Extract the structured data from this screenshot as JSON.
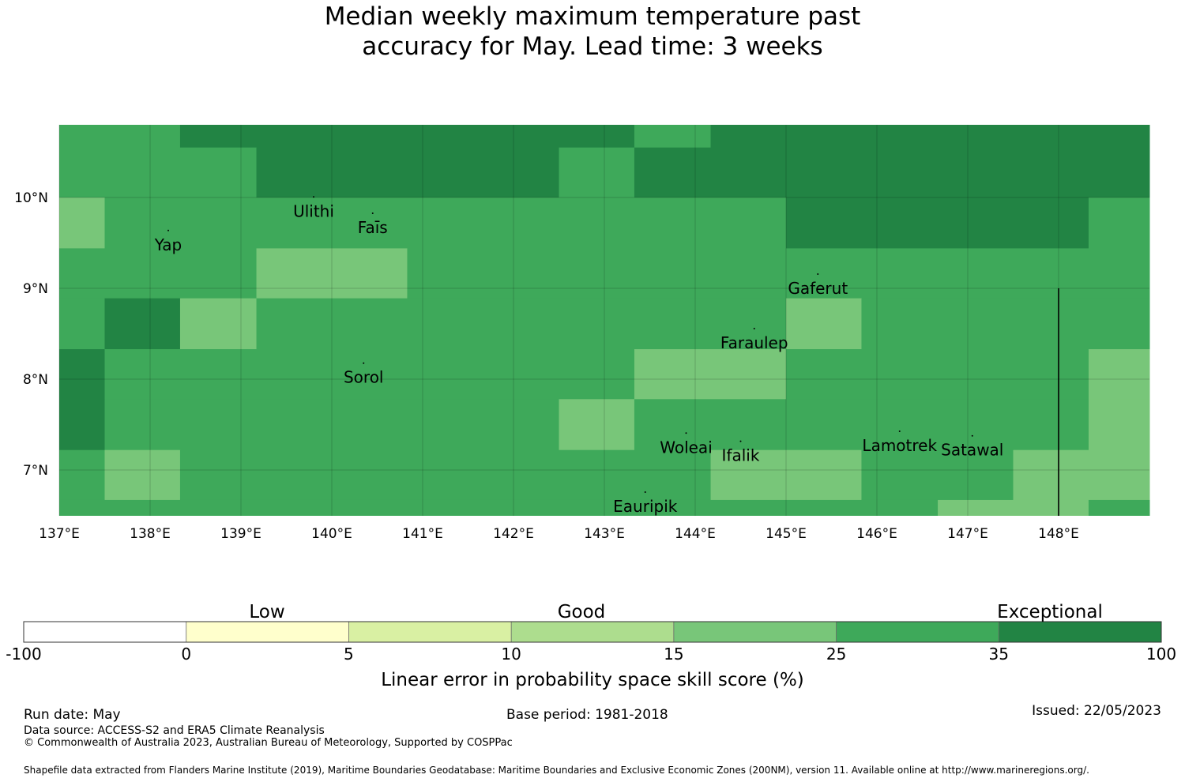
{
  "title": {
    "line1": "Median weekly maximum temperature past",
    "line2": "accuracy for May. Lead time: 3 weeks"
  },
  "map": {
    "lon_range": [
      137,
      149
    ],
    "lat_range": [
      6.5,
      10.8
    ],
    "lon_ticks": [
      {
        "value": 137,
        "label": "137°E"
      },
      {
        "value": 138,
        "label": "138°E"
      },
      {
        "value": 139,
        "label": "139°E"
      },
      {
        "value": 140,
        "label": "140°E"
      },
      {
        "value": 141,
        "label": "141°E"
      },
      {
        "value": 142,
        "label": "142°E"
      },
      {
        "value": 143,
        "label": "143°E"
      },
      {
        "value": 144,
        "label": "144°E"
      },
      {
        "value": 145,
        "label": "145°E"
      },
      {
        "value": 146,
        "label": "146°E"
      },
      {
        "value": 147,
        "label": "147°E"
      },
      {
        "value": 148,
        "label": "148°E"
      }
    ],
    "lat_ticks": [
      {
        "value": 10,
        "label": "10°N"
      },
      {
        "value": 9,
        "label": "9°N"
      },
      {
        "value": 8,
        "label": "8°N"
      },
      {
        "value": 7,
        "label": "7°N"
      }
    ],
    "colors": {
      "d": "#228444",
      "m": "#3ea95a",
      "l": "#78c679"
    },
    "cells": [
      {
        "lon0": 137.0,
        "lon1": 138.33,
        "lat0": 10.55,
        "lat1": 10.8,
        "c": "m"
      },
      {
        "lon0": 138.33,
        "lon1": 143.33,
        "lat0": 10.55,
        "lat1": 10.8,
        "c": "d"
      },
      {
        "lon0": 143.33,
        "lon1": 144.17,
        "lat0": 10.55,
        "lat1": 10.8,
        "c": "m"
      },
      {
        "lon0": 144.17,
        "lon1": 149.0,
        "lat0": 10.55,
        "lat1": 10.8,
        "c": "d"
      },
      {
        "lon0": 137.0,
        "lon1": 139.17,
        "lat0": 10.0,
        "lat1": 10.55,
        "c": "m"
      },
      {
        "lon0": 139.17,
        "lon1": 142.5,
        "lat0": 10.0,
        "lat1": 10.55,
        "c": "d"
      },
      {
        "lon0": 142.5,
        "lon1": 143.33,
        "lat0": 10.0,
        "lat1": 10.55,
        "c": "m"
      },
      {
        "lon0": 143.33,
        "lon1": 149.0,
        "lat0": 10.0,
        "lat1": 10.55,
        "c": "d"
      },
      {
        "lon0": 137.0,
        "lon1": 137.5,
        "lat0": 9.44,
        "lat1": 10.0,
        "c": "l"
      },
      {
        "lon0": 137.5,
        "lon1": 145.0,
        "lat0": 9.44,
        "lat1": 10.0,
        "c": "m"
      },
      {
        "lon0": 145.0,
        "lon1": 148.33,
        "lat0": 9.44,
        "lat1": 10.0,
        "c": "d"
      },
      {
        "lon0": 148.33,
        "lon1": 149.0,
        "lat0": 9.44,
        "lat1": 10.0,
        "c": "m"
      },
      {
        "lon0": 137.0,
        "lon1": 139.17,
        "lat0": 8.89,
        "lat1": 9.44,
        "c": "m"
      },
      {
        "lon0": 139.17,
        "lon1": 140.83,
        "lat0": 8.89,
        "lat1": 9.44,
        "c": "l"
      },
      {
        "lon0": 140.83,
        "lon1": 149.0,
        "lat0": 8.89,
        "lat1": 9.44,
        "c": "m"
      },
      {
        "lon0": 137.0,
        "lon1": 137.5,
        "lat0": 8.33,
        "lat1": 8.89,
        "c": "m"
      },
      {
        "lon0": 137.5,
        "lon1": 138.33,
        "lat0": 8.33,
        "lat1": 8.89,
        "c": "d"
      },
      {
        "lon0": 138.33,
        "lon1": 139.17,
        "lat0": 8.33,
        "lat1": 8.89,
        "c": "l"
      },
      {
        "lon0": 139.17,
        "lon1": 145.0,
        "lat0": 8.33,
        "lat1": 8.89,
        "c": "m"
      },
      {
        "lon0": 145.0,
        "lon1": 145.83,
        "lat0": 8.33,
        "lat1": 8.89,
        "c": "l"
      },
      {
        "lon0": 145.83,
        "lon1": 149.0,
        "lat0": 8.33,
        "lat1": 8.89,
        "c": "m"
      },
      {
        "lon0": 137.0,
        "lon1": 137.5,
        "lat0": 7.78,
        "lat1": 8.33,
        "c": "d"
      },
      {
        "lon0": 137.5,
        "lon1": 143.33,
        "lat0": 7.78,
        "lat1": 8.33,
        "c": "m"
      },
      {
        "lon0": 143.33,
        "lon1": 145.0,
        "lat0": 7.78,
        "lat1": 8.33,
        "c": "l"
      },
      {
        "lon0": 145.0,
        "lon1": 148.33,
        "lat0": 7.78,
        "lat1": 8.33,
        "c": "m"
      },
      {
        "lon0": 148.33,
        "lon1": 149.0,
        "lat0": 7.78,
        "lat1": 8.33,
        "c": "l"
      },
      {
        "lon0": 137.0,
        "lon1": 137.5,
        "lat0": 7.22,
        "lat1": 7.78,
        "c": "d"
      },
      {
        "lon0": 137.5,
        "lon1": 142.5,
        "lat0": 7.22,
        "lat1": 7.78,
        "c": "m"
      },
      {
        "lon0": 142.5,
        "lon1": 143.33,
        "lat0": 7.22,
        "lat1": 7.78,
        "c": "l"
      },
      {
        "lon0": 143.33,
        "lon1": 148.33,
        "lat0": 7.22,
        "lat1": 7.78,
        "c": "m"
      },
      {
        "lon0": 148.33,
        "lon1": 149.0,
        "lat0": 7.22,
        "lat1": 7.78,
        "c": "l"
      },
      {
        "lon0": 137.0,
        "lon1": 137.5,
        "lat0": 6.67,
        "lat1": 7.22,
        "c": "m"
      },
      {
        "lon0": 137.5,
        "lon1": 138.33,
        "lat0": 6.67,
        "lat1": 7.22,
        "c": "l"
      },
      {
        "lon0": 138.33,
        "lon1": 144.17,
        "lat0": 6.67,
        "lat1": 7.22,
        "c": "m"
      },
      {
        "lon0": 144.17,
        "lon1": 145.83,
        "lat0": 6.67,
        "lat1": 7.22,
        "c": "l"
      },
      {
        "lon0": 145.83,
        "lon1": 147.5,
        "lat0": 6.67,
        "lat1": 7.22,
        "c": "m"
      },
      {
        "lon0": 147.5,
        "lon1": 149.0,
        "lat0": 6.67,
        "lat1": 7.22,
        "c": "l"
      },
      {
        "lon0": 137.0,
        "lon1": 146.67,
        "lat0": 6.5,
        "lat1": 6.67,
        "c": "m"
      },
      {
        "lon0": 146.67,
        "lon1": 148.33,
        "lat0": 6.5,
        "lat1": 6.67,
        "c": "l"
      },
      {
        "lon0": 148.33,
        "lon1": 149.0,
        "lat0": 6.5,
        "lat1": 6.67,
        "c": "m"
      }
    ],
    "places": [
      {
        "name": "Ulithi",
        "lon": 139.8,
        "lat": 9.85
      },
      {
        "name": "Faīs",
        "lon": 140.45,
        "lat": 9.67
      },
      {
        "name": "Yap",
        "lon": 138.2,
        "lat": 9.48
      },
      {
        "name": "Gaferut",
        "lon": 145.35,
        "lat": 9.0
      },
      {
        "name": "Faraulep",
        "lon": 144.65,
        "lat": 8.4
      },
      {
        "name": "Sorol",
        "lon": 140.35,
        "lat": 8.02
      },
      {
        "name": "Woleai",
        "lon": 143.9,
        "lat": 7.25
      },
      {
        "name": "Ifalik",
        "lon": 144.5,
        "lat": 7.16
      },
      {
        "name": "Lamotrek",
        "lon": 146.25,
        "lat": 7.27
      },
      {
        "name": "Satawal",
        "lon": 147.05,
        "lat": 7.22
      },
      {
        "name": "Eauripik",
        "lon": 143.45,
        "lat": 6.6
      }
    ],
    "boundary_lon": 148.0,
    "boundary_lat_top": 9.0
  },
  "colorbar": {
    "bins": [
      {
        "from": "-100",
        "to": "0",
        "color": "#ffffff"
      },
      {
        "from": "0",
        "to": "5",
        "color": "#ffffcc"
      },
      {
        "from": "5",
        "to": "10",
        "color": "#d9f0a3"
      },
      {
        "from": "10",
        "to": "15",
        "color": "#addd8e"
      },
      {
        "from": "15",
        "to": "25",
        "color": "#78c679"
      },
      {
        "from": "25",
        "to": "35",
        "color": "#3ea95a"
      },
      {
        "from": "35",
        "to": "100",
        "color": "#228444"
      }
    ],
    "tick_labels": [
      "-100",
      "0",
      "5",
      "10",
      "15",
      "25",
      "35",
      "100"
    ],
    "category_labels": {
      "low": "Low",
      "good": "Good",
      "exceptional": "Exceptional"
    },
    "label": "Linear error in probability space skill score (%)"
  },
  "footer": {
    "run_date": "Run date: May",
    "base_period": "Base period: 1981-2018",
    "issued": "Issued: 22/05/2023",
    "data_source": "Data source: ACCESS-S2 and ERA5 Climate Reanalysis",
    "copyright": "© Commonwealth of Australia 2023, Australian Bureau of Meteorology, Supported by COSPPac",
    "shapefile": "Shapefile data extracted from Flanders Marine Institute (2019), Maritime Boundaries Geodatabase: Maritime Boundaries and Exclusive Economic Zones (200NM), version 11. Available online at http://www.marineregions.org/."
  }
}
